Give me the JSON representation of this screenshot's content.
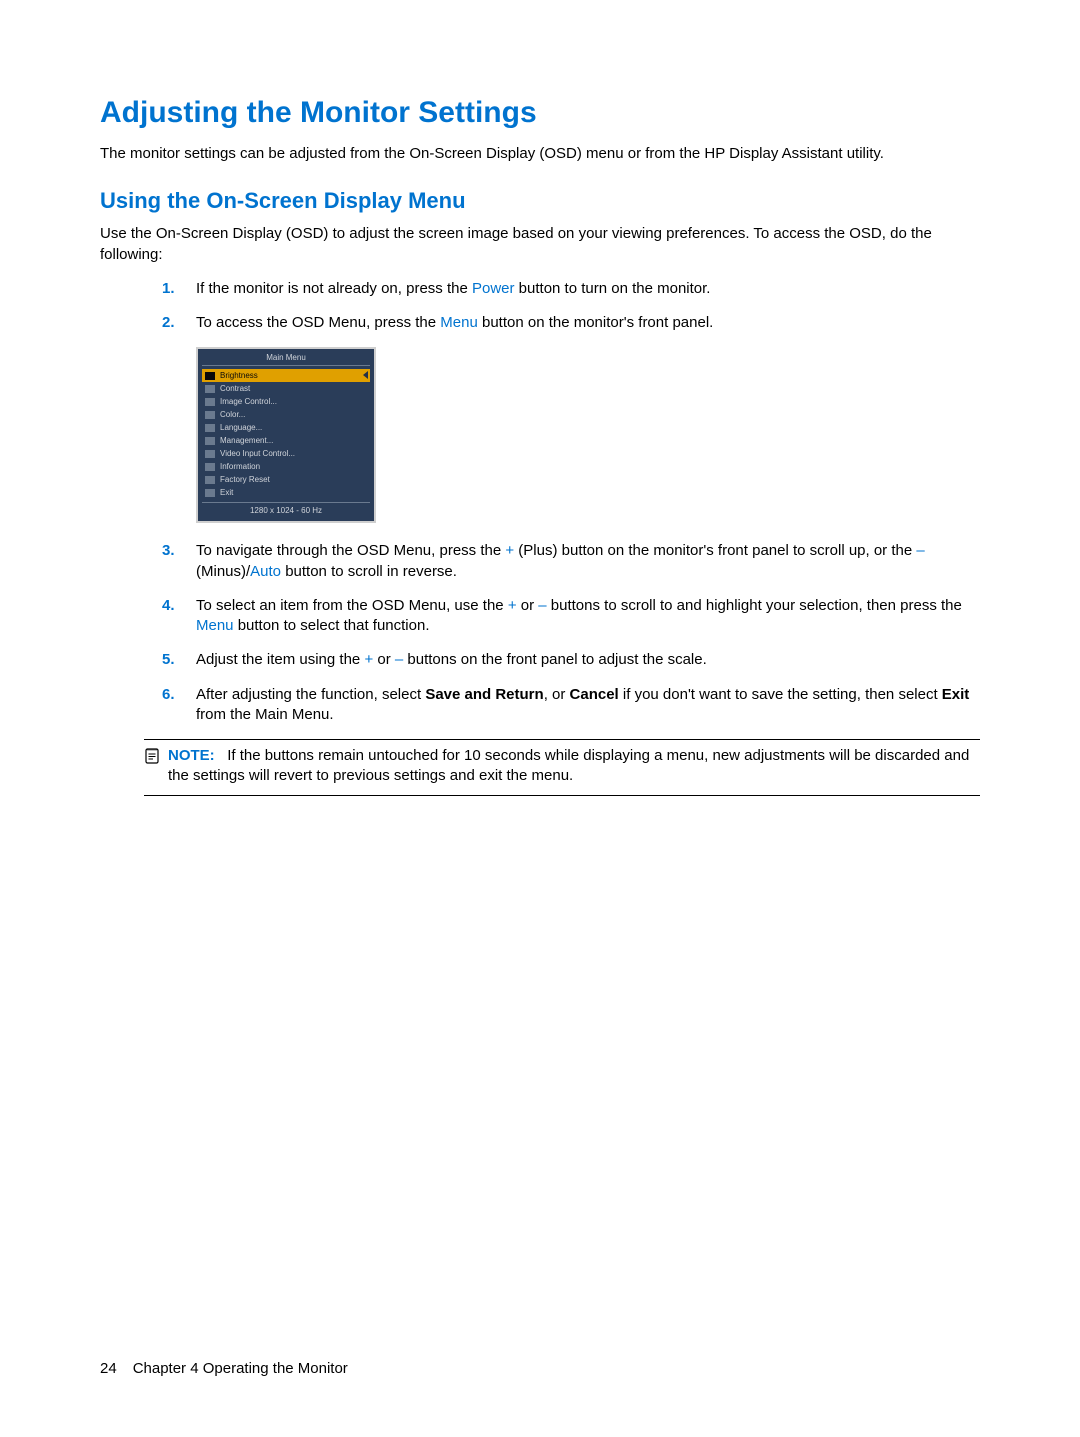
{
  "colors": {
    "accent": "#0073cf",
    "text": "#000000",
    "background": "#ffffff",
    "osd_bg": "#2a3d59",
    "osd_text": "#d0d4da",
    "osd_highlight": "#e0a000",
    "osd_border": "#cfcfcf",
    "rule": "#000000"
  },
  "typography": {
    "base_pt": 11,
    "h1_pt": 22,
    "h2_pt": 16
  },
  "h1": "Adjusting the Monitor Settings",
  "intro": "The monitor settings can be adjusted from the On-Screen Display (OSD) menu or from the HP Display Assistant utility.",
  "h2": "Using the On-Screen Display Menu",
  "intro2": "Use the On-Screen Display (OSD) to adjust the screen image based on your viewing preferences. To access the OSD, do the following:",
  "steps": {
    "s1": {
      "num": "1.",
      "a": "If the monitor is not already on, press the ",
      "power": "Power",
      "b": " button to turn on the monitor."
    },
    "s2": {
      "num": "2.",
      "a": "To access the OSD Menu, press the ",
      "menu": "Menu",
      "b": " button on the monitor's front panel."
    },
    "s3": {
      "num": "3.",
      "a": "To navigate through the OSD Menu, press the ",
      "plus": "+",
      "b": " (Plus) button on the monitor's front panel to scroll up, or the ",
      "minus": "–",
      "c": " (Minus)/",
      "auto": "Auto",
      "d": " button to scroll in reverse."
    },
    "s4": {
      "num": "4.",
      "a": "To select an item from the OSD Menu, use the ",
      "plus": "+",
      "b": " or ",
      "minus": "–",
      "c": " buttons to scroll to and highlight your selection, then press the ",
      "menu": "Menu",
      "d": " button to select that function."
    },
    "s5": {
      "num": "5.",
      "a": "Adjust the item using the ",
      "plus": "+",
      "b": " or ",
      "minus": "–",
      "c": " buttons on the front panel to adjust the scale."
    },
    "s6": {
      "num": "6.",
      "a": "After adjusting the function, select ",
      "save": "Save and Return",
      "b": ", or ",
      "cancel": "Cancel",
      "c": " if you don't want to save the setting, then select ",
      "exit": "Exit",
      "d": " from the Main Menu."
    }
  },
  "osd": {
    "title": "Main Menu",
    "items": [
      "Brightness",
      "Contrast",
      "Image Control...",
      "Color...",
      "Language...",
      "Management...",
      "Video Input Control...",
      "Information",
      "Factory Reset",
      "Exit"
    ],
    "highlight_index": 0,
    "footer": "1280 x 1024 - 60 Hz"
  },
  "note": {
    "label": "NOTE:",
    "text": "If the buttons remain untouched for 10 seconds while displaying a menu, new adjustments will be discarded and the settings will revert to previous settings and exit the menu."
  },
  "footer": {
    "page": "24",
    "chapter": "Chapter 4   Operating the Monitor"
  }
}
